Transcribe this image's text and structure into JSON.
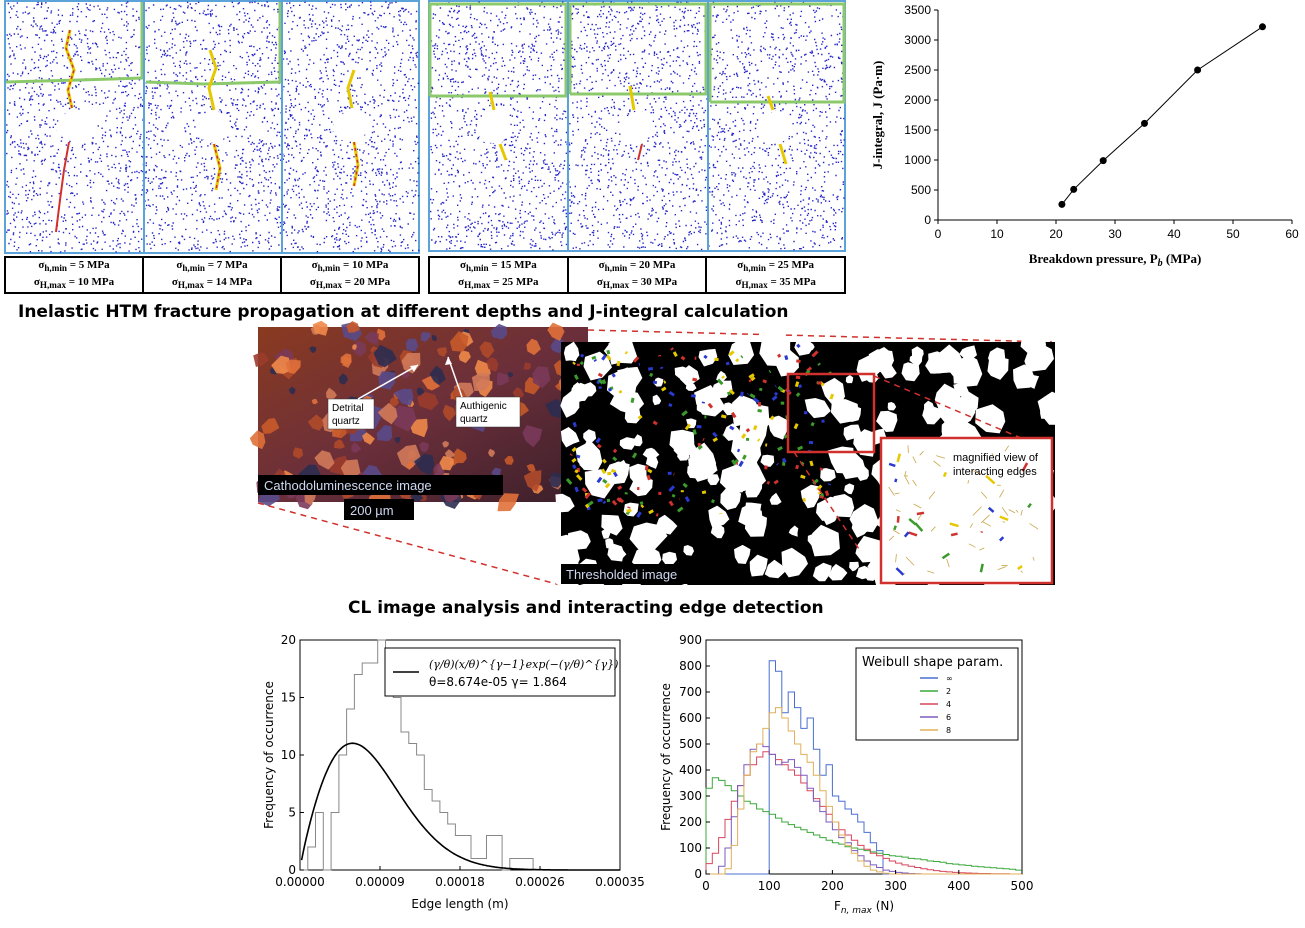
{
  "fracture_panels": {
    "labels": [
      {
        "min": "σ",
        "min_sub": "h,min",
        "min_val": "=  5  MPa",
        "max": "σ",
        "max_sub": "H,max",
        "max_val": "= 10 MPa"
      },
      {
        "min": "σ",
        "min_sub": "h,min",
        "min_val": "=  7  MPa",
        "max": "σ",
        "max_sub": "H,max",
        "max_val": "= 14 MPa"
      },
      {
        "min": "σ",
        "min_sub": "h,min",
        "min_val": "= 10 MPa",
        "max": "σ",
        "max_sub": "H,max",
        "max_val": "= 20 MPa"
      },
      {
        "min": "σ",
        "min_sub": "h,min",
        "min_val": "= 15 MPa",
        "max": "σ",
        "max_sub": "H,max",
        "max_val": "= 25 MPa"
      },
      {
        "min": "σ",
        "min_sub": "h,min",
        "min_val": "= 20 MPa",
        "max": "σ",
        "max_sub": "H,max",
        "max_val": "= 30 MPa"
      },
      {
        "min": "σ",
        "min_sub": "h,min",
        "min_val": "= 25 MPa",
        "max": "σ",
        "max_sub": "H,max",
        "max_val": "= 35 MPa"
      }
    ]
  },
  "captions": {
    "top": "Inelastic HTM fracture propagation at different depths and J-integral calculation",
    "middle": "CL image analysis and interacting edge detection"
  },
  "cl_image": {
    "label_detrital": "Detrital quartz",
    "label_authigenic": "Authigenic quartz",
    "title": "Cathodoluminescence image",
    "scale": "200 µm"
  },
  "threshold_image": {
    "title": "Thresholded image",
    "inset_label": "magnified view of interacting edges"
  },
  "chart_data": [
    {
      "type": "line",
      "xlabel": "Breakdown pressure, P",
      "xlabel_sub": "b",
      "xlabel_unit": " (MPa)",
      "ylabel": "J-integral, J (Pa·m)",
      "xlim": [
        0,
        60
      ],
      "ylim": [
        0,
        3500
      ],
      "xticks": [
        0,
        10,
        20,
        30,
        40,
        50,
        60
      ],
      "yticks": [
        0,
        500,
        1000,
        1500,
        2000,
        2500,
        3000,
        3500
      ],
      "x": [
        21,
        23,
        28,
        35,
        44,
        55
      ],
      "y": [
        260,
        510,
        990,
        1610,
        2500,
        3220
      ]
    },
    {
      "type": "bar",
      "xlabel": "Edge length (m)",
      "ylabel": "Frequency of occurrence",
      "xlim": [
        0,
        0.00035
      ],
      "ylim": [
        0,
        20
      ],
      "xticks": [
        "0.00000",
        "0.00009",
        "0.00018",
        "0.00026",
        "0.00035"
      ],
      "yticks": [
        0,
        5,
        10,
        15,
        20
      ],
      "legend_formula": "(γ/θ)(x/θ)^{γ−1}exp(−(γ/θ)^{γ})",
      "legend_params": "θ=8.674e-05 γ= 1.864",
      "hist_values": [
        0,
        2,
        5,
        0,
        5,
        10,
        14,
        17,
        18,
        18,
        20,
        17,
        15,
        12,
        11,
        10,
        7,
        6,
        5,
        4,
        3,
        3,
        1,
        1,
        3,
        3,
        0,
        1,
        1,
        1,
        0,
        0,
        0,
        0,
        0,
        0,
        0,
        0,
        0,
        0,
        0
      ],
      "bin_width": 8.5e-06
    },
    {
      "type": "line",
      "xlabel": "F",
      "xlabel_sub": "n, max",
      "xlabel_unit": " (N)",
      "ylabel": "Frequency of occurrence",
      "xlim": [
        0,
        500
      ],
      "ylim": [
        0,
        900
      ],
      "xticks": [
        0,
        100,
        200,
        300,
        400,
        500
      ],
      "yticks": [
        0,
        100,
        200,
        300,
        400,
        500,
        600,
        700,
        800,
        900
      ],
      "legend_title": "Weibull shape param.",
      "series": [
        {
          "name": "∞",
          "color": "#4a6fd0",
          "values": [
            0,
            0,
            0,
            0,
            0,
            0,
            0,
            0,
            0,
            0,
            820,
            780,
            620,
            700,
            640,
            560,
            600,
            480,
            380,
            420,
            300,
            280,
            250,
            230,
            200,
            160,
            120,
            90,
            0,
            0,
            0,
            0,
            0,
            0,
            0,
            0,
            0,
            0,
            0,
            0,
            0,
            0,
            0,
            0,
            0,
            0,
            0,
            0,
            0,
            0
          ]
        },
        {
          "name": "2",
          "color": "#3aa83a",
          "values": [
            330,
            370,
            360,
            340,
            320,
            300,
            280,
            270,
            250,
            240,
            230,
            215,
            200,
            190,
            180,
            170,
            160,
            150,
            140,
            130,
            120,
            115,
            105,
            100,
            95,
            90,
            85,
            80,
            75,
            70,
            68,
            65,
            60,
            58,
            55,
            50,
            48,
            45,
            40,
            38,
            35,
            33,
            30,
            28,
            26,
            24,
            22,
            20,
            18,
            15
          ]
        },
        {
          "name": "4",
          "color": "#d9465c",
          "values": [
            40,
            80,
            140,
            210,
            280,
            340,
            380,
            420,
            450,
            470,
            460,
            440,
            420,
            400,
            380,
            350,
            320,
            290,
            260,
            230,
            200,
            170,
            150,
            130,
            110,
            95,
            80,
            70,
            60,
            50,
            42,
            35,
            30,
            25,
            20,
            16,
            13,
            10,
            8,
            6,
            5,
            4,
            3,
            2,
            2,
            1,
            1,
            1,
            0,
            0
          ]
        },
        {
          "name": "6",
          "color": "#7b5bbf",
          "values": [
            0,
            0,
            30,
            100,
            220,
            340,
            420,
            480,
            500,
            490,
            460,
            420,
            430,
            440,
            410,
            380,
            330,
            280,
            240,
            200,
            170,
            140,
            120,
            90,
            70,
            50,
            35,
            25,
            15,
            10,
            6,
            4,
            2,
            1,
            0,
            0,
            0,
            0,
            0,
            0,
            0,
            0,
            0,
            0,
            0,
            0,
            0,
            0,
            0,
            0
          ]
        },
        {
          "name": "8",
          "color": "#e0b05a",
          "values": [
            0,
            0,
            0,
            20,
            110,
            250,
            380,
            470,
            500,
            560,
            620,
            640,
            600,
            550,
            500,
            460,
            430,
            380,
            320,
            260,
            200,
            150,
            110,
            80,
            50,
            30,
            15,
            8,
            3,
            0,
            0,
            0,
            0,
            0,
            0,
            0,
            0,
            0,
            0,
            0,
            0,
            0,
            0,
            0,
            0,
            0,
            0,
            0,
            0,
            0
          ]
        }
      ],
      "bin_width": 10
    }
  ]
}
